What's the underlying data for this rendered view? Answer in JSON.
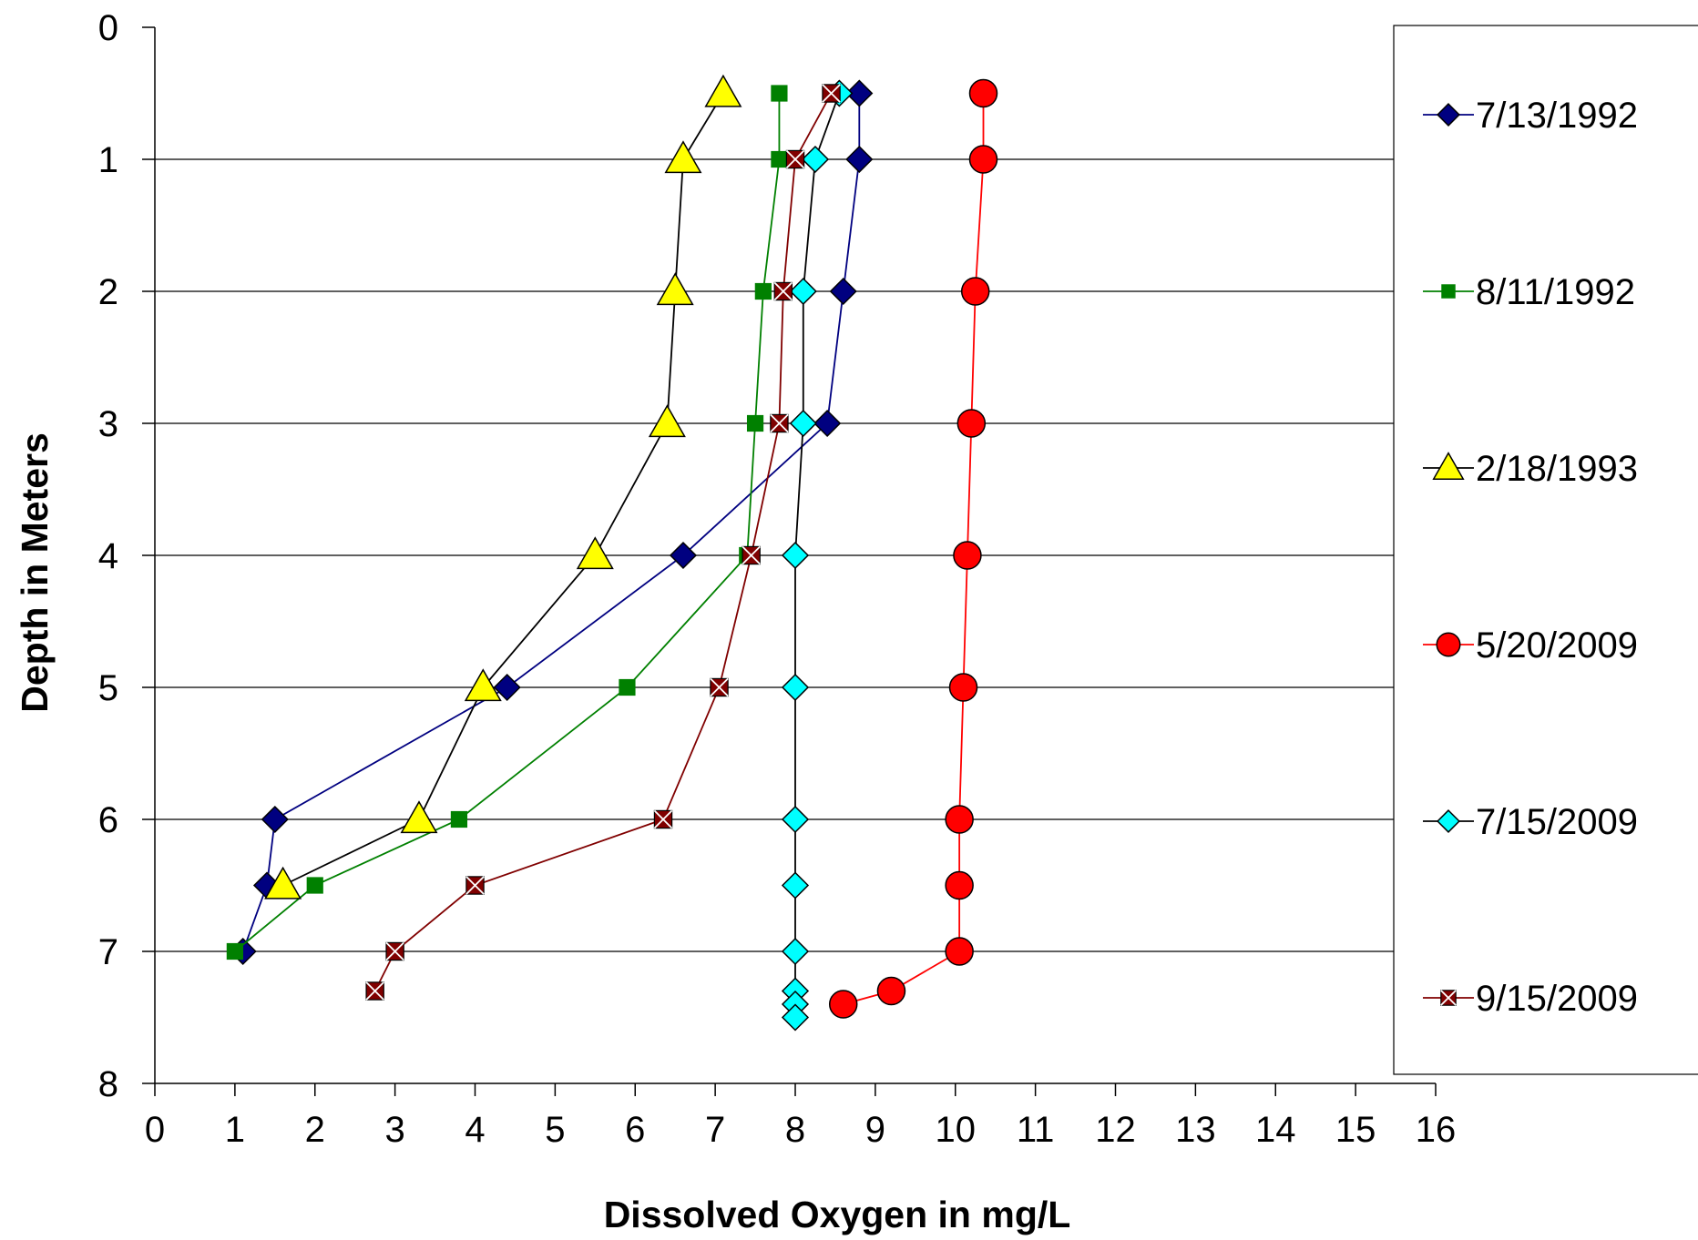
{
  "chart_data": {
    "type": "line",
    "xlabel": "Dissolved Oxygen in mg/L",
    "ylabel": "Depth in Meters",
    "xlim": [
      0,
      16
    ],
    "ylim": [
      0,
      8
    ],
    "y_inverted": true,
    "x_ticks": [
      "0",
      "1",
      "2",
      "3",
      "4",
      "5",
      "6",
      "7",
      "8",
      "9",
      "10",
      "11",
      "12",
      "13",
      "14",
      "15",
      "16"
    ],
    "y_ticks": [
      "0",
      "1",
      "2",
      "3",
      "4",
      "5",
      "6",
      "7",
      "8"
    ],
    "grid": "horizontal",
    "legend_position": "right",
    "series": [
      {
        "name": "7/13/1992",
        "color": "#000080",
        "marker": "diamond",
        "points": [
          [
            8.8,
            0.5
          ],
          [
            8.8,
            1
          ],
          [
            8.6,
            2
          ],
          [
            8.4,
            3
          ],
          [
            6.6,
            4
          ],
          [
            4.4,
            5
          ],
          [
            1.5,
            6
          ],
          [
            1.4,
            6.5
          ],
          [
            1.1,
            7
          ]
        ]
      },
      {
        "name": "8/11/1992",
        "color": "#008000",
        "marker": "square",
        "points": [
          [
            7.8,
            0.5
          ],
          [
            7.8,
            1
          ],
          [
            7.6,
            2
          ],
          [
            7.5,
            3
          ],
          [
            7.4,
            4
          ],
          [
            5.9,
            5
          ],
          [
            3.8,
            6
          ],
          [
            2.0,
            6.5
          ],
          [
            1.0,
            7
          ]
        ]
      },
      {
        "name": "2/18/1993",
        "color": "#000000",
        "markerFill": "#FFFF00",
        "marker": "triangle",
        "points": [
          [
            7.1,
            0.5
          ],
          [
            6.6,
            1
          ],
          [
            6.5,
            2
          ],
          [
            6.4,
            3
          ],
          [
            5.5,
            4
          ],
          [
            4.1,
            5
          ],
          [
            3.3,
            6
          ],
          [
            1.6,
            6.5
          ]
        ]
      },
      {
        "name": "5/20/2009",
        "color": "#FF0000",
        "marker": "circle",
        "points": [
          [
            10.35,
            0.5
          ],
          [
            10.35,
            1
          ],
          [
            10.25,
            2
          ],
          [
            10.2,
            3
          ],
          [
            10.15,
            4
          ],
          [
            10.1,
            5
          ],
          [
            10.05,
            6
          ],
          [
            10.05,
            6.5
          ],
          [
            10.05,
            7
          ],
          [
            9.2,
            7.3
          ],
          [
            8.6,
            7.4
          ]
        ]
      },
      {
        "name": "7/15/2009",
        "color": "#00FFFF",
        "marker": "diamond",
        "points": [
          [
            8.55,
            0.5
          ],
          [
            8.25,
            1
          ],
          [
            8.1,
            2
          ],
          [
            8.1,
            3
          ],
          [
            8.0,
            4
          ],
          [
            8.0,
            5
          ],
          [
            8.0,
            6
          ],
          [
            8.0,
            6.5
          ],
          [
            8.0,
            7
          ],
          [
            8.0,
            7.3
          ],
          [
            8.0,
            7.4
          ],
          [
            8.0,
            7.5
          ]
        ]
      },
      {
        "name": "9/15/2009",
        "color": "#800000",
        "marker": "xsquare",
        "points": [
          [
            8.45,
            0.5
          ],
          [
            8.0,
            1
          ],
          [
            7.85,
            2
          ],
          [
            7.8,
            3
          ],
          [
            7.45,
            4
          ],
          [
            7.05,
            5
          ],
          [
            6.35,
            6
          ],
          [
            4.0,
            6.5
          ],
          [
            3.0,
            7
          ],
          [
            2.75,
            7.3
          ]
        ]
      }
    ]
  }
}
